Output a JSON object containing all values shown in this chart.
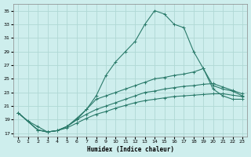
{
  "xlabel": "Humidex (Indice chaleur)",
  "bg_color": "#ceeeed",
  "grid_color": "#b0d8d5",
  "line_color": "#2a7a6a",
  "xlim": [
    -0.5,
    23.5
  ],
  "ylim": [
    16.5,
    36.0
  ],
  "xticks": [
    0,
    1,
    2,
    3,
    4,
    5,
    6,
    7,
    8,
    9,
    10,
    11,
    12,
    13,
    14,
    15,
    16,
    17,
    18,
    19,
    20,
    21,
    22,
    23
  ],
  "yticks": [
    17,
    19,
    21,
    23,
    25,
    27,
    29,
    31,
    33,
    35
  ],
  "line1_x": [
    0,
    1,
    2,
    3,
    4,
    5,
    6,
    7,
    8,
    9,
    10,
    11,
    12,
    13,
    14,
    15,
    16,
    17,
    18,
    19,
    20,
    21,
    22,
    23
  ],
  "line1_y": [
    20.0,
    18.8,
    18.0,
    17.2,
    17.4,
    18.0,
    19.2,
    20.5,
    22.5,
    25.5,
    27.5,
    29.0,
    30.5,
    33.0,
    35.0,
    34.5,
    33.0,
    32.5,
    29.0,
    26.5,
    23.5,
    22.5,
    22.0,
    22.0
  ],
  "line2_x": [
    0,
    2,
    3,
    4,
    5,
    6,
    7,
    8,
    9,
    10,
    11,
    12,
    13,
    14,
    15,
    16,
    17,
    18,
    19,
    20,
    21,
    22,
    23
  ],
  "line2_y": [
    20.0,
    17.5,
    17.2,
    17.4,
    18.0,
    19.0,
    20.5,
    22.0,
    22.5,
    23.0,
    23.5,
    24.0,
    24.5,
    25.0,
    25.2,
    25.5,
    25.7,
    26.0,
    26.5,
    24.0,
    23.5,
    23.2,
    22.5
  ],
  "line3_x": [
    0,
    2,
    3,
    4,
    5,
    6,
    7,
    8,
    9,
    10,
    11,
    12,
    13,
    14,
    15,
    16,
    17,
    18,
    19,
    20,
    21,
    22,
    23
  ],
  "line3_y": [
    20.0,
    17.5,
    17.2,
    17.4,
    18.0,
    19.0,
    19.8,
    20.5,
    21.0,
    21.5,
    22.0,
    22.5,
    23.0,
    23.2,
    23.5,
    23.7,
    23.9,
    24.0,
    24.2,
    24.3,
    23.8,
    23.3,
    22.8
  ],
  "line4_x": [
    0,
    2,
    3,
    4,
    5,
    6,
    7,
    8,
    9,
    10,
    11,
    12,
    13,
    14,
    15,
    16,
    17,
    18,
    19,
    20,
    21,
    22,
    23
  ],
  "line4_y": [
    20.0,
    17.5,
    17.2,
    17.4,
    17.8,
    18.5,
    19.2,
    19.8,
    20.2,
    20.7,
    21.1,
    21.5,
    21.8,
    22.0,
    22.2,
    22.4,
    22.5,
    22.6,
    22.7,
    22.8,
    22.8,
    22.6,
    22.4
  ]
}
